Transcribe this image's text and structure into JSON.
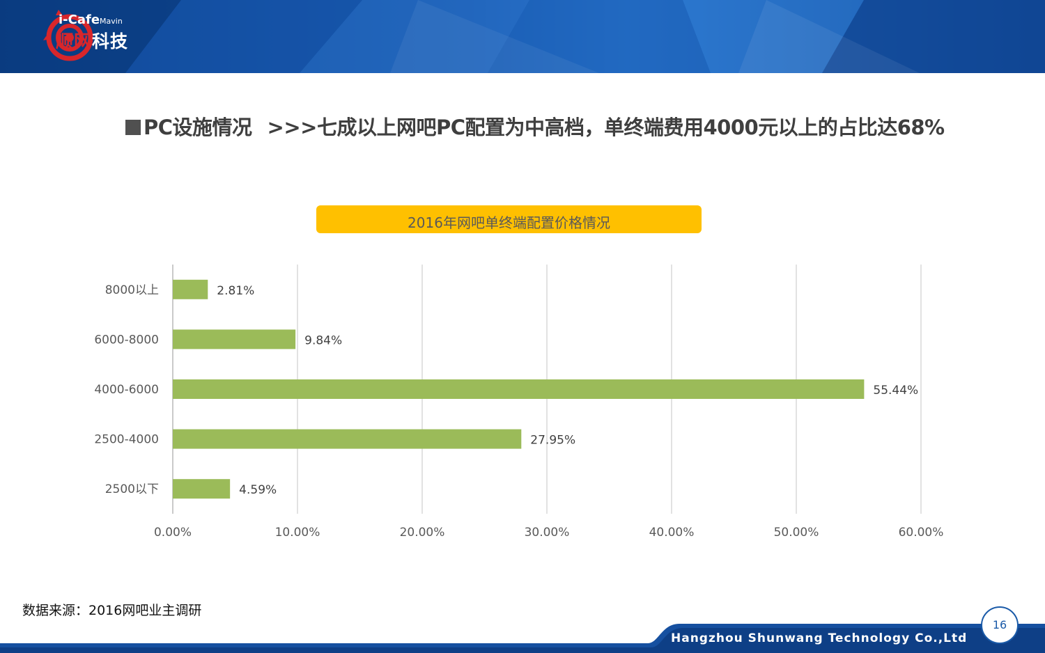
{
  "brand": {
    "logo_top": "i-Cafe",
    "logo_top_small": "Mavin",
    "logo_bottom_red": "顺网",
    "logo_bottom": "科技"
  },
  "headline": {
    "section": "PC设施情况",
    "text": ">>>七成以上网吧PC配置为中高档，单终端费用4000元以上的占比达68%"
  },
  "chart_data": {
    "type": "bar",
    "orientation": "horizontal",
    "title": "2016年网吧单终端配置价格情况",
    "categories": [
      "8000以上",
      "6000-8000",
      "4000-6000",
      "2500-4000",
      "2500以下"
    ],
    "values": [
      2.81,
      9.84,
      55.44,
      27.95,
      4.59
    ],
    "value_labels": [
      "2.81%",
      "9.84%",
      "55.44%",
      "27.95%",
      "4.59%"
    ],
    "xlim": [
      0,
      60
    ],
    "xticks": [
      "0.00%",
      "10.00%",
      "20.00%",
      "30.00%",
      "40.00%",
      "50.00%",
      "60.00%"
    ],
    "grid": true,
    "bar_color": "#9bbb59"
  },
  "source": "数据来源：2016网吧业主调研",
  "footer": {
    "company": "Hangzhou Shunwang Technology Co.,Ltd",
    "page_number": "16"
  },
  "colors": {
    "header_blue": "#1a5db5",
    "title_box": "#ffc000",
    "bar": "#9bbb59",
    "logo_red": "#d8262b"
  }
}
